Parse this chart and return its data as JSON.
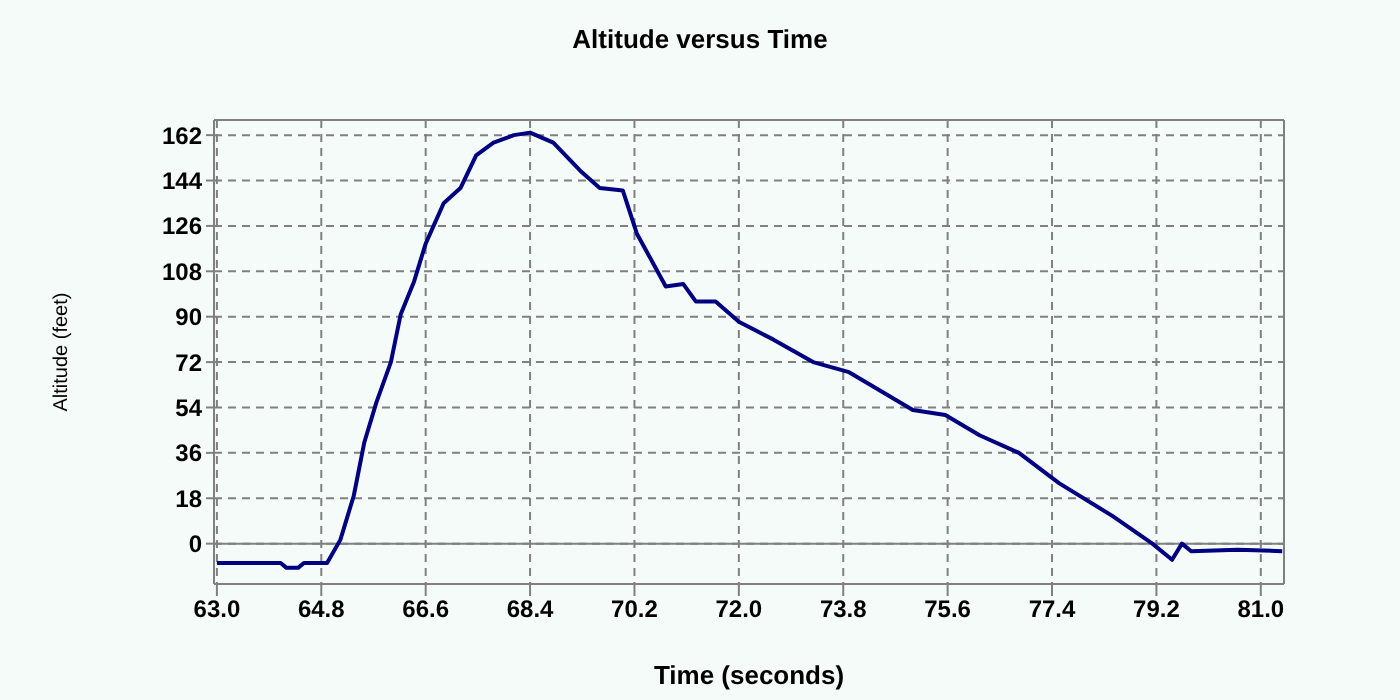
{
  "chart_data": {
    "type": "line",
    "title": "Altitude versus Time",
    "xlabel": "Time (seconds)",
    "ylabel": "Altitude (feet)",
    "x": [
      63.0,
      64.1,
      64.2,
      64.4,
      64.5,
      64.9,
      65.13,
      65.36,
      65.54,
      65.75,
      66.0,
      66.17,
      66.4,
      66.6,
      66.91,
      67.2,
      67.47,
      67.77,
      68.12,
      68.4,
      68.8,
      69.26,
      69.6,
      70.0,
      70.24,
      70.74,
      71.04,
      71.26,
      71.6,
      72.0,
      72.59,
      73.28,
      73.9,
      75.0,
      75.56,
      76.15,
      76.83,
      77.52,
      78.44,
      79.13,
      79.47,
      79.64,
      79.8,
      80.6,
      81.37
    ],
    "series": [
      {
        "color": "#000080",
        "values": [
          -7.7,
          -7.7,
          -9.6,
          -9.6,
          -7.7,
          -7.7,
          1.6,
          19,
          40,
          56,
          72,
          91,
          104,
          119,
          135,
          141,
          154,
          159,
          162,
          163,
          159,
          148,
          141,
          140,
          123,
          102,
          103,
          96,
          96,
          88,
          81,
          72,
          68,
          53,
          51,
          43,
          36,
          24,
          11,
          0,
          -6.4,
          0,
          -3,
          -2.4,
          -3
        ]
      }
    ],
    "xlim": [
      62.95,
      81.4
    ],
    "ylim": [
      -16,
      168
    ],
    "xticks": [
      {
        "value": 63,
        "label": "63.0"
      },
      {
        "value": 64.8,
        "label": "64.8"
      },
      {
        "value": 66.6,
        "label": "66.6"
      },
      {
        "value": 68.4,
        "label": "68.4"
      },
      {
        "value": 70.2,
        "label": "70.2"
      },
      {
        "value": 72,
        "label": "72.0"
      },
      {
        "value": 73.8,
        "label": "73.8"
      },
      {
        "value": 75.6,
        "label": "75.6"
      },
      {
        "value": 77.4,
        "label": "77.4"
      },
      {
        "value": 79.2,
        "label": "79.2"
      },
      {
        "value": 81,
        "label": "81.0"
      }
    ],
    "yticks": [
      0,
      18,
      36,
      54,
      72,
      90,
      108,
      126,
      144,
      162
    ],
    "grid": true,
    "line_style": "solid",
    "marker": "none"
  }
}
